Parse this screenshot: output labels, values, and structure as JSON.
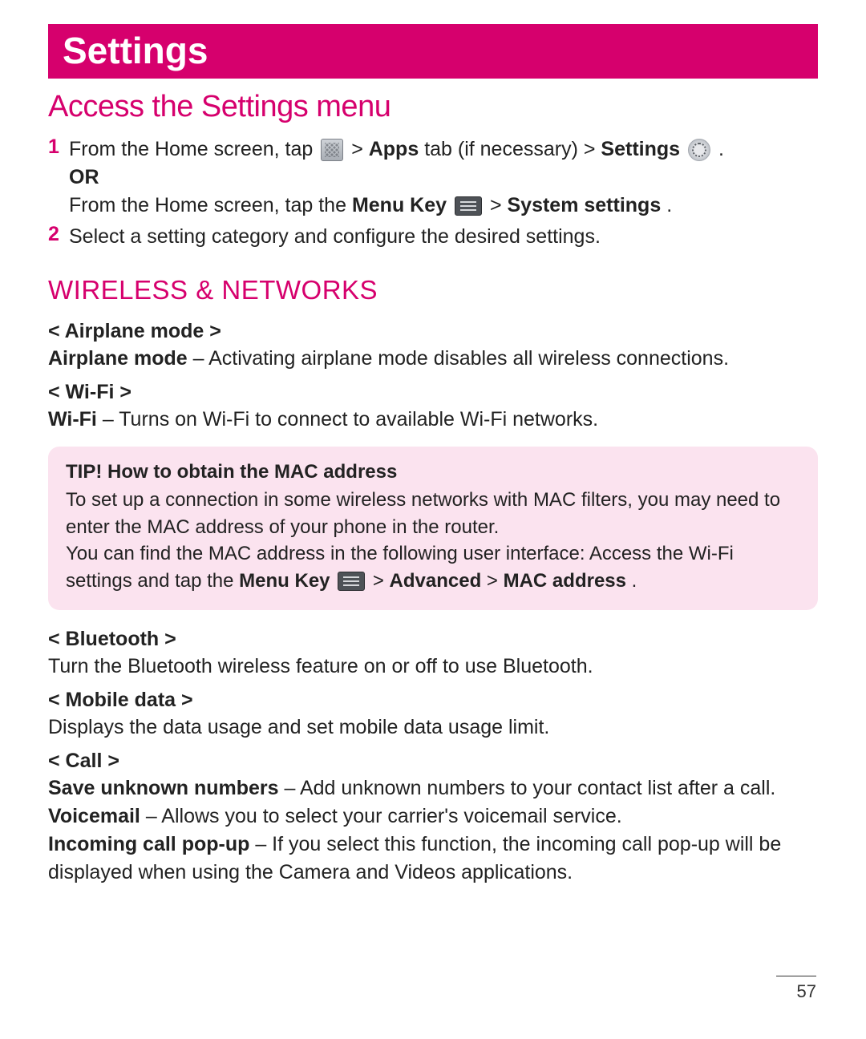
{
  "titleBar": {
    "title": "Settings"
  },
  "section1": {
    "heading": "Access the Settings menu",
    "step1": {
      "num": "1",
      "pre": "From the Home screen, tap ",
      "mid1": " > ",
      "apps": "Apps",
      "mid2": " tab (if necessary) > ",
      "settings": "Settings",
      "post": " .",
      "or": "OR",
      "line2a": "From the Home screen, tap the ",
      "menuKey": "Menu Key",
      "line2b": " > ",
      "sysSettings": "System settings",
      "line2c": "."
    },
    "step2": {
      "num": "2",
      "text": "Select a setting category and configure the desired settings."
    }
  },
  "category": {
    "heading": "WIRELESS & NETWORKS"
  },
  "airplane": {
    "heading": "< Airplane mode >",
    "label": "Airplane mode",
    "desc": " – Activating airplane mode disables all wireless connections."
  },
  "wifi": {
    "heading": "< Wi-Fi >",
    "label": "Wi-Fi",
    "desc": " – Turns on Wi-Fi to connect to available Wi-Fi networks."
  },
  "tip": {
    "title": "TIP! How to obtain the MAC address",
    "line1": "To set up a connection in some wireless networks with MAC filters, you may need to enter the MAC address of your phone in the router.",
    "line2a": "You can find the MAC address in the following user interface: Access the Wi-Fi settings and tap the ",
    "menuKey": "Menu Key",
    "line2b": " > ",
    "advanced": "Advanced",
    "line2c": " > ",
    "mac": "MAC address",
    "line2d": "."
  },
  "bluetooth": {
    "heading": "< Bluetooth >",
    "desc": "Turn the Bluetooth wireless feature on or off to use Bluetooth."
  },
  "mobiledata": {
    "heading": "< Mobile data >",
    "desc": "Displays the data usage and set mobile data usage limit."
  },
  "call": {
    "heading": "< Call >",
    "item1Label": "Save unknown numbers",
    "item1Desc": " – Add unknown numbers to your contact list after a call.",
    "item2Label": "Voicemail",
    "item2Desc": " – Allows you to select your carrier's voicemail service.",
    "item3Label": "Incoming call pop-up",
    "item3Desc": " – If you select this function, the incoming call pop-up will be displayed when using the Camera and Videos applications."
  },
  "pageNumber": "57"
}
